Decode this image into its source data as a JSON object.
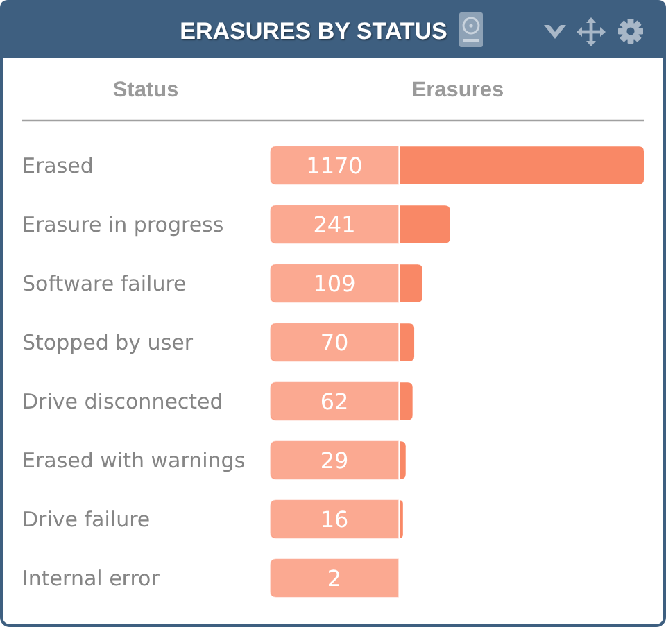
{
  "chart_data": {
    "type": "bar",
    "orientation": "horizontal",
    "title": "ERASURES BY STATUS",
    "ylabel": "Status",
    "xlabel": "Erasures",
    "categories": [
      "Erased",
      "Erasure in progress",
      "Software failure",
      "Stopped by user",
      "Drive disconnected",
      "Erased with warnings",
      "Drive failure",
      "Internal error"
    ],
    "values": [
      1170,
      241,
      109,
      70,
      62,
      29,
      16,
      2
    ],
    "color": "#f98866",
    "data_labels": true
  }
}
